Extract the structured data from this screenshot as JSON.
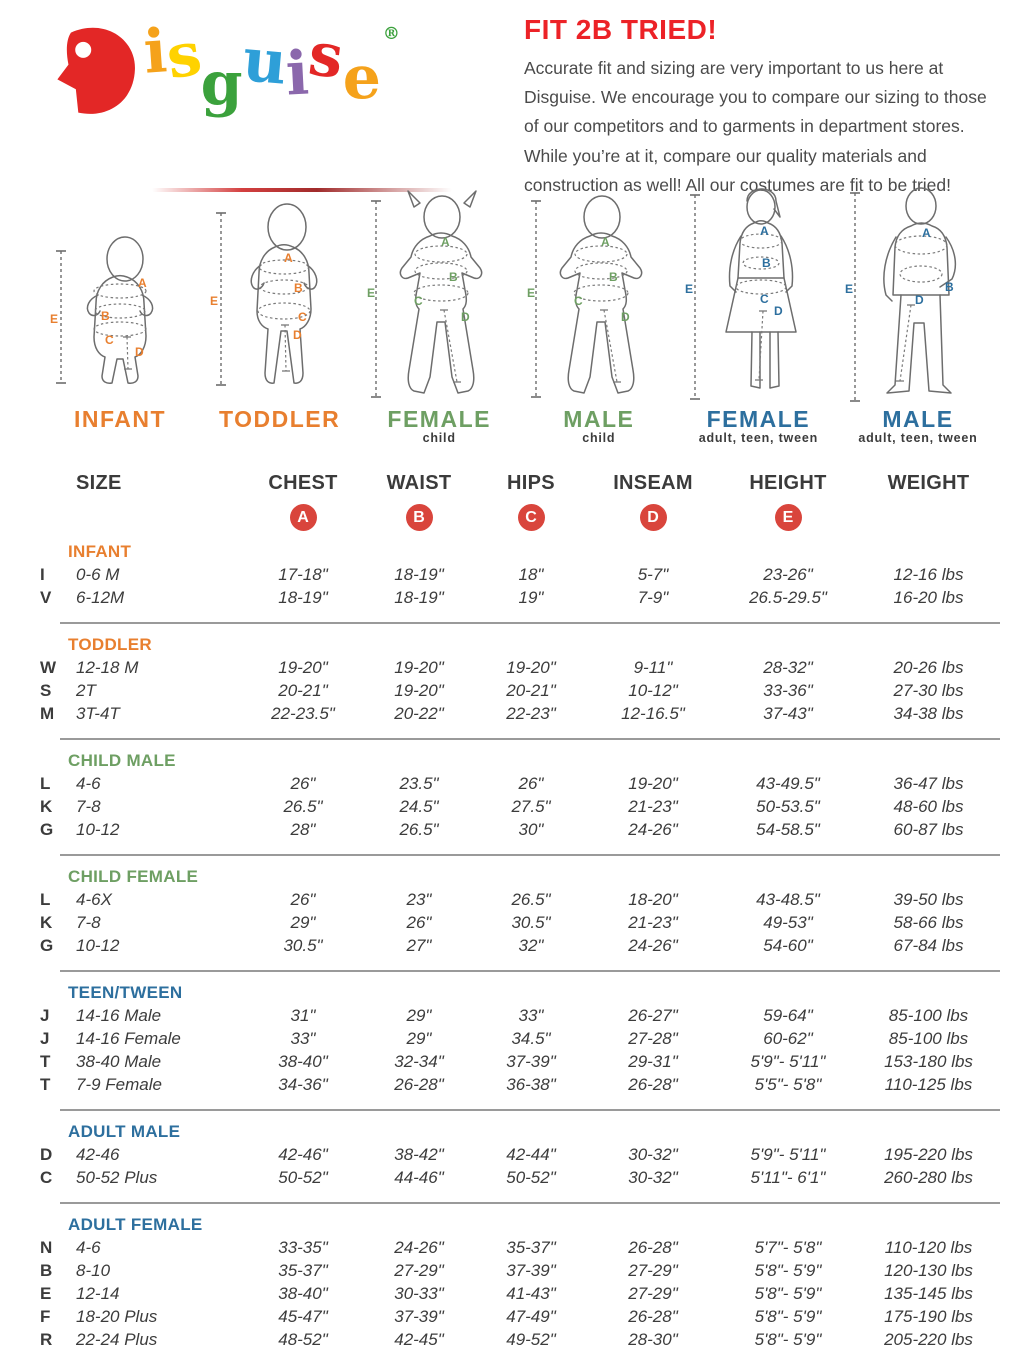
{
  "logo": {
    "brand": "Disguise",
    "registered": "®",
    "letters": [
      {
        "ch": "D",
        "color": "#E32726"
      },
      {
        "ch": "i",
        "color": "#F5A21B"
      },
      {
        "ch": "s",
        "color": "#FFD200"
      },
      {
        "ch": "g",
        "color": "#3BA13C"
      },
      {
        "ch": "u",
        "color": "#2E9FD8"
      },
      {
        "ch": "i",
        "color": "#8B68AC"
      },
      {
        "ch": "s",
        "color": "#E32726"
      },
      {
        "ch": "e",
        "color": "#F5A21B"
      }
    ],
    "registered_color": "#3BA13C"
  },
  "intro": {
    "title": "FIT 2B TRIED!",
    "title_color": "#EC2227",
    "body": "Accurate fit and sizing are very important to us here at Disguise. We encourage you to compare our sizing to those of our competitors and to garments in department stores. While you’re at it, compare our quality materials and construction as well! All our costumes are fit to be tried!"
  },
  "figures": [
    {
      "caption": "INFANT",
      "sub": "",
      "color": "#E87F2F",
      "shape": "infant",
      "labels": [
        "A",
        "B",
        "C",
        "D",
        "E"
      ]
    },
    {
      "caption": "TODDLER",
      "sub": "",
      "color": "#E87F2F",
      "shape": "toddler",
      "labels": [
        "A",
        "B",
        "C",
        "D",
        "E"
      ]
    },
    {
      "caption": "FEMALE",
      "sub": "child",
      "color": "#6E9F63",
      "shape": "child_female",
      "labels": [
        "A",
        "B",
        "C",
        "D",
        "E"
      ]
    },
    {
      "caption": "MALE",
      "sub": "child",
      "color": "#6E9F63",
      "shape": "child_male",
      "labels": [
        "A",
        "B",
        "C",
        "D",
        "E"
      ]
    },
    {
      "caption": "FEMALE",
      "sub": "adult, teen, tween",
      "color": "#2D6F9E",
      "shape": "adult_female",
      "labels": [
        "A",
        "B",
        "C",
        "D",
        "E"
      ]
    },
    {
      "caption": "MALE",
      "sub": "adult, teen, tween",
      "color": "#2D6F9E",
      "shape": "adult_male",
      "labels": [
        "A",
        "B",
        "D",
        "E"
      ]
    }
  ],
  "table": {
    "headers": [
      "SIZE",
      "CHEST",
      "WAIST",
      "HIPS",
      "INSEAM",
      "HEIGHT",
      "WEIGHT"
    ],
    "badge_letters": [
      "A",
      "B",
      "C",
      "D",
      "E"
    ],
    "badge_color": "#D9453C",
    "sections": [
      {
        "title": "INFANT",
        "color": "#E87F2F",
        "rows": [
          {
            "letter": "I",
            "size": "0-6 M",
            "values": [
              "17-18\"",
              "18-19\"",
              "18\"",
              "5-7\"",
              "23-26\"",
              "12-16 lbs"
            ]
          },
          {
            "letter": "V",
            "size": "6-12M",
            "values": [
              "18-19\"",
              "18-19\"",
              "19\"",
              "7-9\"",
              "26.5-29.5\"",
              "16-20 lbs"
            ]
          }
        ]
      },
      {
        "title": "TODDLER",
        "color": "#E87F2F",
        "rows": [
          {
            "letter": "W",
            "size": "12-18 M",
            "values": [
              "19-20\"",
              "19-20\"",
              "19-20\"",
              "9-11\"",
              "28-32\"",
              "20-26 lbs"
            ]
          },
          {
            "letter": "S",
            "size": "2T",
            "values": [
              "20-21\"",
              "19-20\"",
              "20-21\"",
              "10-12\"",
              "33-36\"",
              "27-30 lbs"
            ]
          },
          {
            "letter": "M",
            "size": "3T-4T",
            "values": [
              "22-23.5\"",
              "20-22\"",
              "22-23\"",
              "12-16.5\"",
              "37-43\"",
              "34-38 lbs"
            ]
          }
        ]
      },
      {
        "title": "CHILD MALE",
        "color": "#6E9F63",
        "rows": [
          {
            "letter": "L",
            "size": "4-6",
            "values": [
              "26\"",
              "23.5\"",
              "26\"",
              "19-20\"",
              "43-49.5\"",
              "36-47 lbs"
            ]
          },
          {
            "letter": "K",
            "size": "7-8",
            "values": [
              "26.5\"",
              "24.5\"",
              "27.5\"",
              "21-23\"",
              "50-53.5\"",
              "48-60 lbs"
            ]
          },
          {
            "letter": "G",
            "size": "10-12",
            "values": [
              "28\"",
              "26.5\"",
              "30\"",
              "24-26\"",
              "54-58.5\"",
              "60-87 lbs"
            ]
          }
        ]
      },
      {
        "title": "CHILD FEMALE",
        "color": "#6E9F63",
        "rows": [
          {
            "letter": "L",
            "size": "4-6X",
            "values": [
              "26\"",
              "23\"",
              "26.5\"",
              "18-20\"",
              "43-48.5\"",
              "39-50 lbs"
            ]
          },
          {
            "letter": "K",
            "size": "7-8",
            "values": [
              "29\"",
              "26\"",
              "30.5\"",
              "21-23\"",
              "49-53\"",
              "58-66 lbs"
            ]
          },
          {
            "letter": "G",
            "size": "10-12",
            "values": [
              "30.5\"",
              "27\"",
              "32\"",
              "24-26\"",
              "54-60\"",
              "67-84 lbs"
            ]
          }
        ]
      },
      {
        "title": "TEEN/TWEEN",
        "color": "#2D6F9E",
        "rows": [
          {
            "letter": "J",
            "size": "14-16 Male",
            "values": [
              "31\"",
              "29\"",
              "33\"",
              "26-27\"",
              "59-64\"",
              "85-100 lbs"
            ]
          },
          {
            "letter": "J",
            "size": "14-16 Female",
            "values": [
              "33\"",
              "29\"",
              "34.5\"",
              "27-28\"",
              "60-62\"",
              "85-100 lbs"
            ]
          },
          {
            "letter": "T",
            "size": "38-40 Male",
            "values": [
              "38-40\"",
              "32-34\"",
              "37-39\"",
              "29-31\"",
              "5'9\"- 5'11\"",
              "153-180 lbs"
            ]
          },
          {
            "letter": "T",
            "size": "7-9 Female",
            "values": [
              "34-36\"",
              "26-28\"",
              "36-38\"",
              "26-28\"",
              "5'5\"- 5'8\"",
              "110-125 lbs"
            ]
          }
        ]
      },
      {
        "title": "ADULT MALE",
        "color": "#2D6F9E",
        "rows": [
          {
            "letter": "D",
            "size": "42-46",
            "values": [
              "42-46\"",
              "38-42\"",
              "42-44\"",
              "30-32\"",
              "5'9\"- 5'11\"",
              "195-220 lbs"
            ]
          },
          {
            "letter": "C",
            "size": "50-52 Plus",
            "values": [
              "50-52\"",
              "44-46\"",
              "50-52\"",
              "30-32\"",
              "5'11\"- 6'1\"",
              "260-280 lbs"
            ]
          }
        ]
      },
      {
        "title": "ADULT FEMALE",
        "color": "#2D6F9E",
        "rows": [
          {
            "letter": "N",
            "size": "4-6",
            "values": [
              "33-35\"",
              "24-26\"",
              "35-37\"",
              "26-28\"",
              "5'7\"- 5'8\"",
              "110-120 lbs"
            ]
          },
          {
            "letter": "B",
            "size": "8-10",
            "values": [
              "35-37\"",
              "27-29\"",
              "37-39\"",
              "27-29\"",
              "5'8\"- 5'9\"",
              "120-130 lbs"
            ]
          },
          {
            "letter": "E",
            "size": "12-14",
            "values": [
              "38-40\"",
              "30-33\"",
              "41-43\"",
              "27-29\"",
              "5'8\"- 5'9\"",
              "135-145 lbs"
            ]
          },
          {
            "letter": "F",
            "size": "18-20 Plus",
            "values": [
              "45-47\"",
              "37-39\"",
              "47-49\"",
              "26-28\"",
              "5'8\"- 5'9\"",
              "175-190 lbs"
            ]
          },
          {
            "letter": "R",
            "size": "22-24 Plus",
            "values": [
              "48-52\"",
              "42-45\"",
              "49-52\"",
              "28-30\"",
              "5'8\"- 5'9\"",
              "205-220 lbs"
            ]
          }
        ]
      }
    ]
  }
}
